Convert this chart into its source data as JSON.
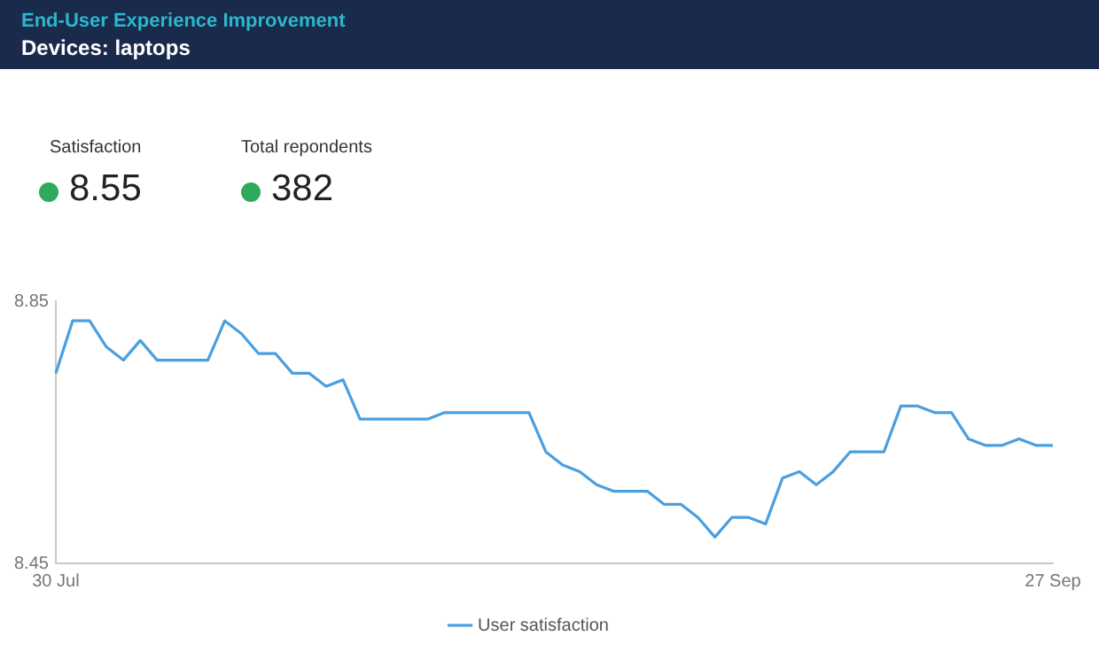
{
  "chart_data": [
    {
      "type": "other",
      "title": "End-User Experience Improvement",
      "subtitle": "Devices: laptops",
      "categories": [
        "Satisfaction",
        "Total repondents"
      ],
      "values": [
        8.55,
        382
      ],
      "data_labels": true,
      "colors": [
        "#2eaa5c",
        "#2eaa5c"
      ]
    },
    {
      "type": "line",
      "categories": [
        "30 Jul",
        null,
        null,
        null,
        null,
        null,
        null,
        null,
        null,
        null,
        null,
        null,
        null,
        null,
        null,
        null,
        null,
        null,
        null,
        null,
        null,
        null,
        null,
        null,
        null,
        null,
        null,
        null,
        null,
        null,
        null,
        null,
        null,
        null,
        null,
        null,
        null,
        null,
        null,
        null,
        null,
        null,
        null,
        null,
        null,
        null,
        null,
        null,
        null,
        null,
        null,
        null,
        null,
        null,
        null,
        null,
        null,
        null,
        null,
        "27 Sep"
      ],
      "series": [
        {
          "name": "User satisfaction",
          "color": "#4a9fe0",
          "values": [
            8.74,
            8.82,
            8.82,
            8.78,
            8.76,
            8.79,
            8.76,
            8.76,
            8.76,
            8.76,
            8.82,
            8.8,
            8.77,
            8.77,
            8.74,
            8.74,
            8.72,
            8.73,
            8.67,
            8.67,
            8.67,
            8.67,
            8.67,
            8.68,
            8.68,
            8.68,
            8.68,
            8.68,
            8.68,
            8.62,
            8.6,
            8.59,
            8.57,
            8.56,
            8.56,
            8.56,
            8.54,
            8.54,
            8.52,
            8.49,
            8.52,
            8.52,
            8.51,
            8.58,
            8.59,
            8.57,
            8.59,
            8.62,
            8.62,
            8.62,
            8.69,
            8.69,
            8.68,
            8.68,
            8.64,
            8.63,
            8.63,
            8.64,
            8.63,
            8.63
          ]
        }
      ],
      "ylim": [
        8.45,
        8.85
      ],
      "yticks": [
        8.45,
        8.85
      ],
      "grid": false,
      "legend": "bottom",
      "marker": "none",
      "line_style": "solid"
    }
  ]
}
